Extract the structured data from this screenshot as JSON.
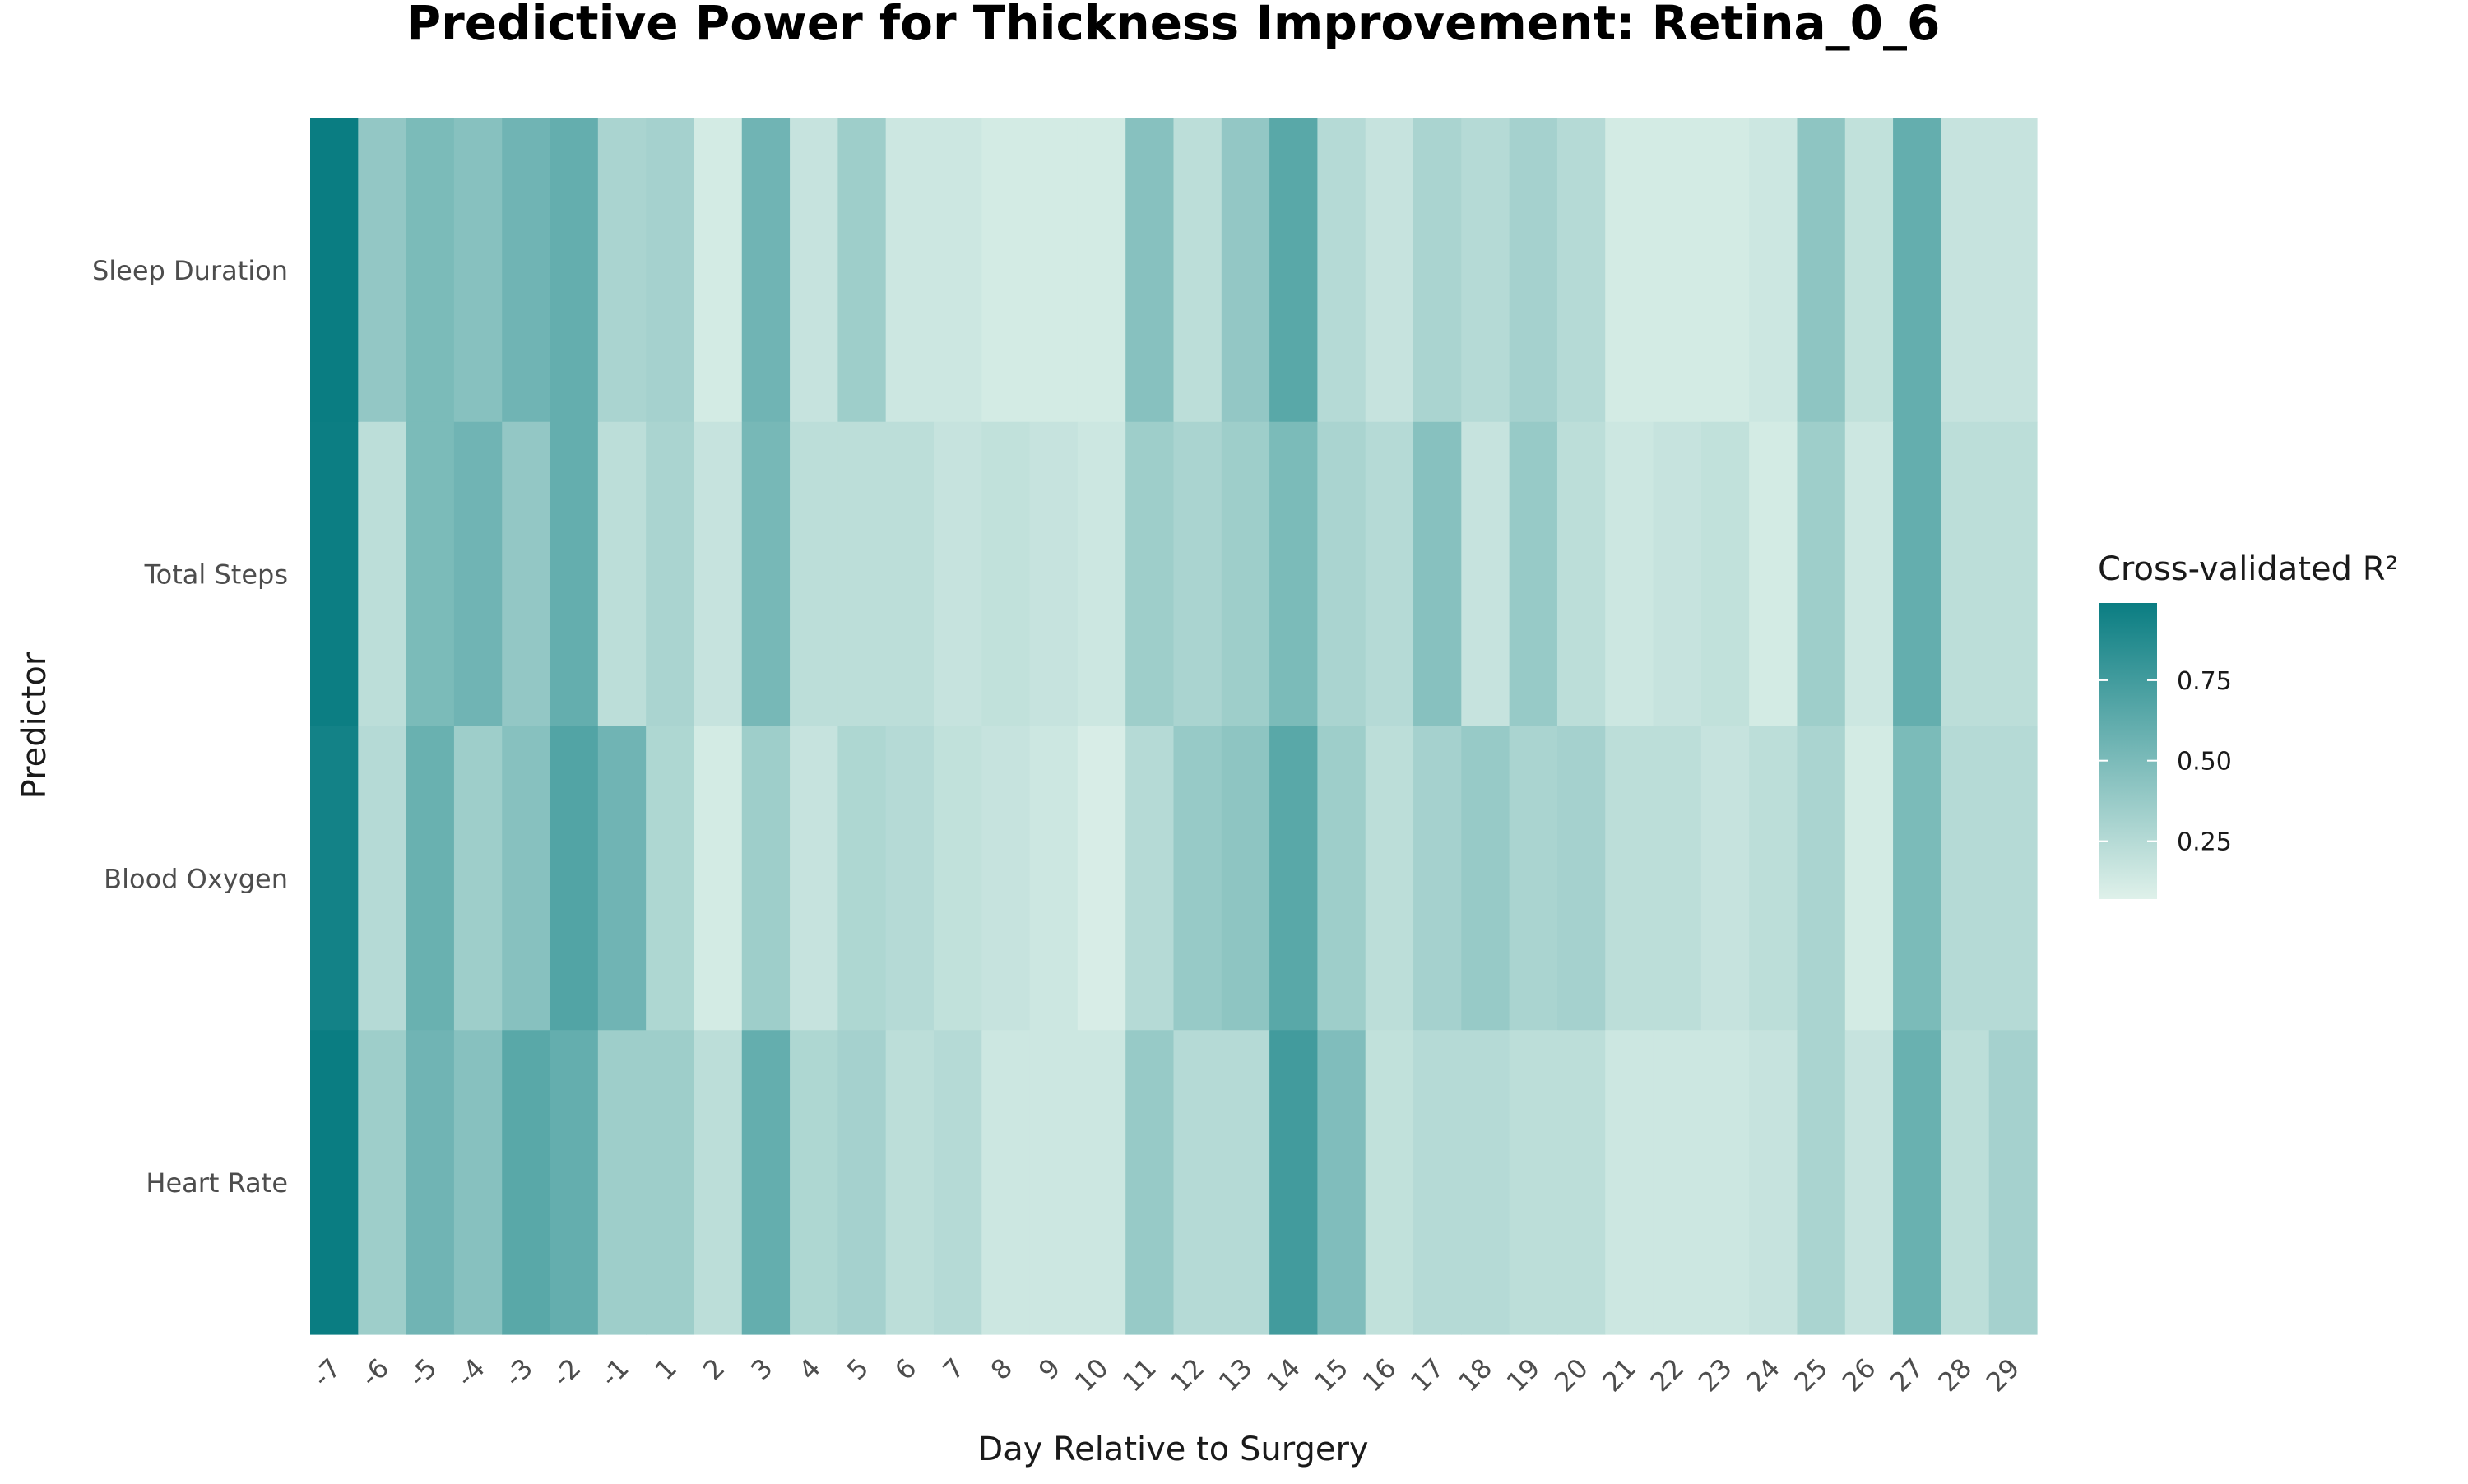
{
  "chart_data": {
    "type": "heatmap",
    "title": "Predictive Power for Thickness Improvement: Retina_0_6",
    "xlabel": "Day Relative to Surgery",
    "ylabel": "Predictor",
    "x_categories": [
      "-7",
      "-6",
      "-5",
      "-4",
      "-3",
      "-2",
      "-1",
      "1",
      "2",
      "3",
      "4",
      "5",
      "6",
      "7",
      "8",
      "9",
      "10",
      "11",
      "12",
      "13",
      "14",
      "15",
      "16",
      "17",
      "18",
      "19",
      "20",
      "21",
      "22",
      "23",
      "24",
      "25",
      "26",
      "27",
      "28",
      "29"
    ],
    "y_categories": [
      "Sleep Duration",
      "Total Steps",
      "Blood Oxygen",
      "Heart Rate"
    ],
    "values": [
      [
        0.99,
        0.4,
        0.5,
        0.45,
        0.55,
        0.6,
        0.3,
        0.32,
        0.12,
        0.55,
        0.18,
        0.35,
        0.15,
        0.15,
        0.12,
        0.12,
        0.12,
        0.45,
        0.22,
        0.4,
        0.65,
        0.25,
        0.18,
        0.3,
        0.25,
        0.32,
        0.25,
        0.12,
        0.12,
        0.12,
        0.15,
        0.42,
        0.2,
        0.6,
        0.18,
        0.18
      ],
      [
        0.98,
        0.22,
        0.5,
        0.55,
        0.4,
        0.6,
        0.22,
        0.3,
        0.18,
        0.52,
        0.22,
        0.22,
        0.22,
        0.18,
        0.2,
        0.18,
        0.15,
        0.35,
        0.3,
        0.35,
        0.5,
        0.3,
        0.25,
        0.45,
        0.18,
        0.38,
        0.22,
        0.15,
        0.18,
        0.2,
        0.12,
        0.35,
        0.15,
        0.6,
        0.22,
        0.22
      ],
      [
        0.95,
        0.25,
        0.58,
        0.35,
        0.45,
        0.68,
        0.55,
        0.28,
        0.12,
        0.35,
        0.18,
        0.28,
        0.25,
        0.2,
        0.18,
        0.15,
        0.1,
        0.25,
        0.38,
        0.42,
        0.65,
        0.35,
        0.22,
        0.32,
        0.38,
        0.3,
        0.32,
        0.22,
        0.22,
        0.18,
        0.22,
        0.3,
        0.12,
        0.5,
        0.25,
        0.25
      ],
      [
        0.99,
        0.35,
        0.55,
        0.45,
        0.65,
        0.6,
        0.35,
        0.35,
        0.22,
        0.6,
        0.28,
        0.32,
        0.22,
        0.25,
        0.15,
        0.15,
        0.15,
        0.38,
        0.25,
        0.25,
        0.75,
        0.48,
        0.2,
        0.25,
        0.25,
        0.22,
        0.22,
        0.15,
        0.15,
        0.15,
        0.18,
        0.3,
        0.18,
        0.58,
        0.22,
        0.32
      ]
    ],
    "colorbar": {
      "title": "Cross-validated R²",
      "min": 0.07,
      "max": 0.99,
      "ticks": [
        0.25,
        0.5,
        0.75
      ],
      "tick_labels": [
        "0.25",
        "0.50",
        "0.75"
      ],
      "color_low": "#dff1ea",
      "color_high": "#0a7d82"
    },
    "grid": false,
    "legend_position": "right"
  }
}
